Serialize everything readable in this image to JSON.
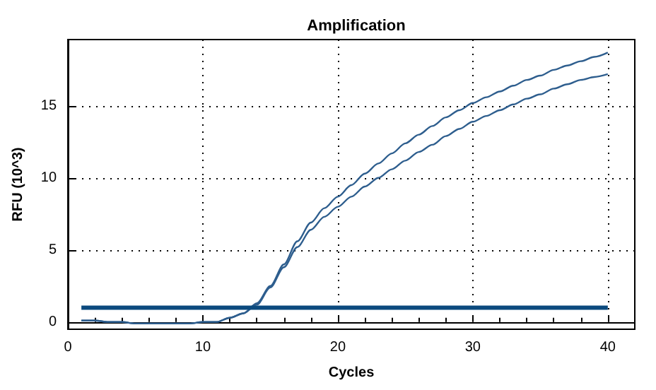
{
  "chart_data": {
    "type": "line",
    "title": "Amplification",
    "xlabel": "Cycles",
    "ylabel": "RFU (10^3)",
    "x": [
      1,
      2,
      3,
      4,
      5,
      6,
      7,
      8,
      9,
      10,
      11,
      12,
      13,
      14,
      15,
      16,
      17,
      18,
      19,
      20,
      21,
      22,
      23,
      24,
      25,
      26,
      27,
      28,
      29,
      30,
      31,
      32,
      33,
      34,
      35,
      36,
      37,
      38,
      39,
      40
    ],
    "series": [
      {
        "color": "#2e5e8e",
        "values": [
          0.1,
          0.1,
          0,
          0,
          -0.1,
          -0.1,
          -0.1,
          -0.1,
          -0.1,
          0,
          0,
          0.3,
          0.6,
          1.3,
          2.5,
          4.0,
          5.6,
          6.9,
          7.9,
          8.7,
          9.5,
          10.3,
          11.0,
          11.7,
          12.4,
          13.0,
          13.6,
          14.2,
          14.7,
          15.2,
          15.6,
          16.0,
          16.4,
          16.8,
          17.1,
          17.5,
          17.8,
          18.1,
          18.4,
          18.7
        ]
      },
      {
        "color": "#2e5e8e",
        "values": [
          0.1,
          0.1,
          0,
          0,
          -0.1,
          -0.1,
          -0.1,
          -0.1,
          -0.1,
          0,
          0,
          0.3,
          0.6,
          1.2,
          2.4,
          3.8,
          5.2,
          6.4,
          7.3,
          8.0,
          8.7,
          9.4,
          10.0,
          10.6,
          11.2,
          11.8,
          12.3,
          12.9,
          13.4,
          13.9,
          14.3,
          14.7,
          15.1,
          15.5,
          15.8,
          16.2,
          16.5,
          16.8,
          17.0,
          17.2
        ]
      }
    ],
    "ref_lines": [
      {
        "axis": "y",
        "value": 1,
        "color": "#0b4a7e"
      }
    ],
    "xlim": [
      0,
      42
    ],
    "xticks": [
      0,
      10,
      20,
      30,
      40
    ],
    "ylim": [
      -0.5,
      19.6
    ],
    "yticks": [
      0,
      5,
      10,
      15
    ],
    "grid": true,
    "marker": "none",
    "line_style": "solid"
  }
}
